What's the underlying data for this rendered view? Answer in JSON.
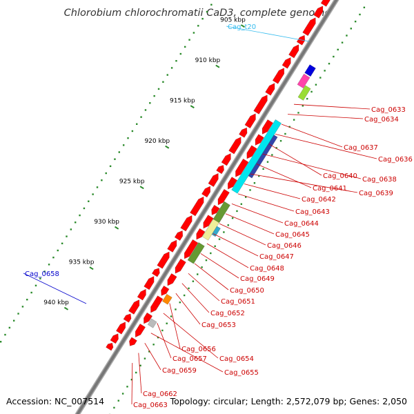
{
  "header": {
    "title": "Chlorobium chlorochromatii CaD3, complete genome"
  },
  "footer": {
    "accession": "Accession: NC_007514",
    "summary": "Topology: circular; Length: 2,572,079 bp; Genes: 2,050"
  },
  "scale_ticks": [
    "905 kbp",
    "910 kbp",
    "915 kbp",
    "920 kbp",
    "925 kbp",
    "930 kbp",
    "935 kbp",
    "940 kbp"
  ],
  "colors": {
    "forward_cds": "#ff0000",
    "reverse_cds": "#ff0000",
    "label_red": "#cc0000",
    "label_blue": "#0000cc",
    "label_cyan": "#33bbee",
    "backbone": "#777777",
    "tick": "#2a8a2a"
  },
  "labels": [
    {
      "text": "Cag_t20",
      "color": "cyan"
    },
    {
      "text": "Cag_0658",
      "color": "blue"
    },
    {
      "text": "Cag_0633",
      "color": "red"
    },
    {
      "text": "Cag_0634",
      "color": "red"
    },
    {
      "text": "Cag_0637",
      "color": "red"
    },
    {
      "text": "Cag_0636",
      "color": "red"
    },
    {
      "text": "Cag_0640",
      "color": "red"
    },
    {
      "text": "Cag_0638",
      "color": "red"
    },
    {
      "text": "Cag_0641",
      "color": "red"
    },
    {
      "text": "Cag_0639",
      "color": "red"
    },
    {
      "text": "Cag_0642",
      "color": "red"
    },
    {
      "text": "Cag_0643",
      "color": "red"
    },
    {
      "text": "Cag_0644",
      "color": "red"
    },
    {
      "text": "Cag_0645",
      "color": "red"
    },
    {
      "text": "Cag_0646",
      "color": "red"
    },
    {
      "text": "Cag_0647",
      "color": "red"
    },
    {
      "text": "Cag_0648",
      "color": "red"
    },
    {
      "text": "Cag_0649",
      "color": "red"
    },
    {
      "text": "Cag_0650",
      "color": "red"
    },
    {
      "text": "Cag_0651",
      "color": "red"
    },
    {
      "text": "Cag_0652",
      "color": "red"
    },
    {
      "text": "Cag_0653",
      "color": "red"
    },
    {
      "text": "Cag_0656",
      "color": "red"
    },
    {
      "text": "Cag_0654",
      "color": "red"
    },
    {
      "text": "Cag_0657",
      "color": "red"
    },
    {
      "text": "Cag_0655",
      "color": "red"
    },
    {
      "text": "Cag_0659",
      "color": "red"
    },
    {
      "text": "Cag_0662",
      "color": "red"
    },
    {
      "text": "Cag_0663",
      "color": "red"
    }
  ]
}
